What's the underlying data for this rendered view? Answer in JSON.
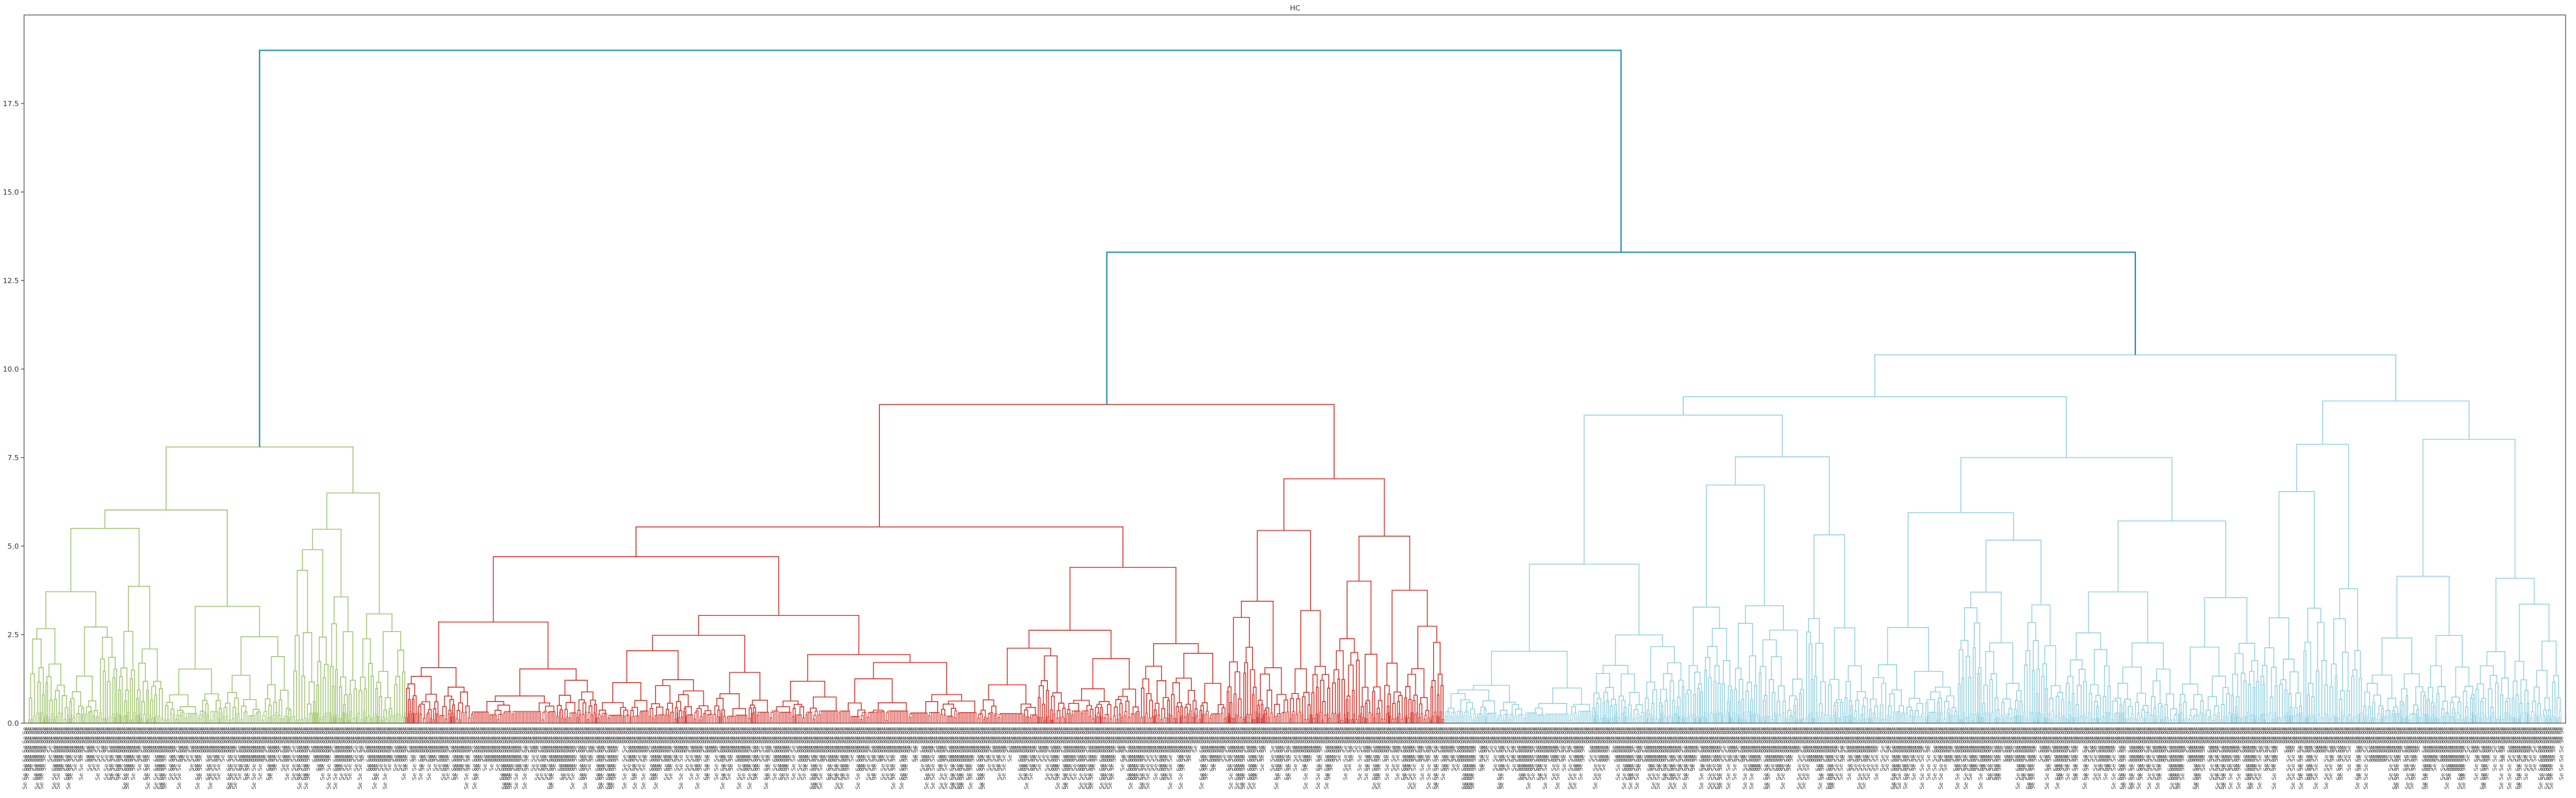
{
  "chart_data": {
    "type": "dendrogram",
    "title": "HC",
    "xlabel": "",
    "ylabel": "",
    "ylim": [
      0,
      20
    ],
    "y_ticks": [
      "0.0",
      "2.5",
      "5.0",
      "7.5",
      "10.0",
      "12.5",
      "15.0",
      "17.5"
    ],
    "grid": false,
    "legend": "none",
    "leaf_label_text": "Se",
    "above_threshold_color": "#1f8fb4",
    "clusters": [
      {
        "color": "#9cc46a",
        "leaf_share": 0.149,
        "merge_height": 7.8,
        "subclusters": [
          {
            "share": 0.36,
            "height": 5.5
          },
          {
            "share": 0.34,
            "height": 3.3
          },
          {
            "share": 0.3,
            "height": 6.5
          }
        ]
      },
      {
        "color": "#d42a20",
        "leaf_share": 0.41,
        "merge_height": 9.0,
        "subclusters": [
          {
            "share": 0.55,
            "height": 4.7
          },
          {
            "share": 0.24,
            "height": 4.4
          },
          {
            "share": 0.21,
            "height": 6.9
          }
        ]
      },
      {
        "color": "#8fd0e0",
        "leaf_share": 0.441,
        "merge_height": 10.4,
        "subclusters": [
          {
            "share": 0.38,
            "height": 8.7
          },
          {
            "share": 0.35,
            "height": 7.5
          },
          {
            "share": 0.27,
            "height": 9.1
          }
        ]
      }
    ],
    "top_merges": [
      {
        "left": "cluster_2",
        "right": "cluster_3",
        "height": 13.3
      },
      {
        "left": "cluster_1",
        "right": "clusters_2_3",
        "height": 19.0
      }
    ]
  }
}
